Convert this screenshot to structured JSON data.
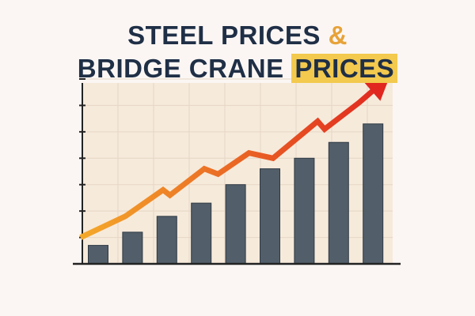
{
  "chart_data": {
    "type": "bar",
    "title": [
      "STEEL PRICES",
      "&",
      "BRIDGE CRANE",
      "PRICES"
    ],
    "values": [
      0.7,
      1.2,
      1.8,
      2.3,
      3.0,
      3.6,
      4.0,
      4.6,
      5.3
    ],
    "color": "#525e69",
    "ylim": [
      0,
      7
    ],
    "yticks": [
      1,
      2,
      3,
      4,
      5,
      6,
      7
    ],
    "grid": true,
    "trend": {
      "x": [
        -0.5,
        0.8,
        1.9,
        2.1,
        3.1,
        3.5,
        4.4,
        5.1,
        6.4,
        6.6,
        7.6,
        8.4
      ],
      "values": [
        1.0,
        1.8,
        2.8,
        2.6,
        3.6,
        3.4,
        4.2,
        4.0,
        5.4,
        5.1,
        6.1,
        7.0
      ],
      "color_start": "#f4a92a",
      "color_end": "#e0261f"
    }
  }
}
